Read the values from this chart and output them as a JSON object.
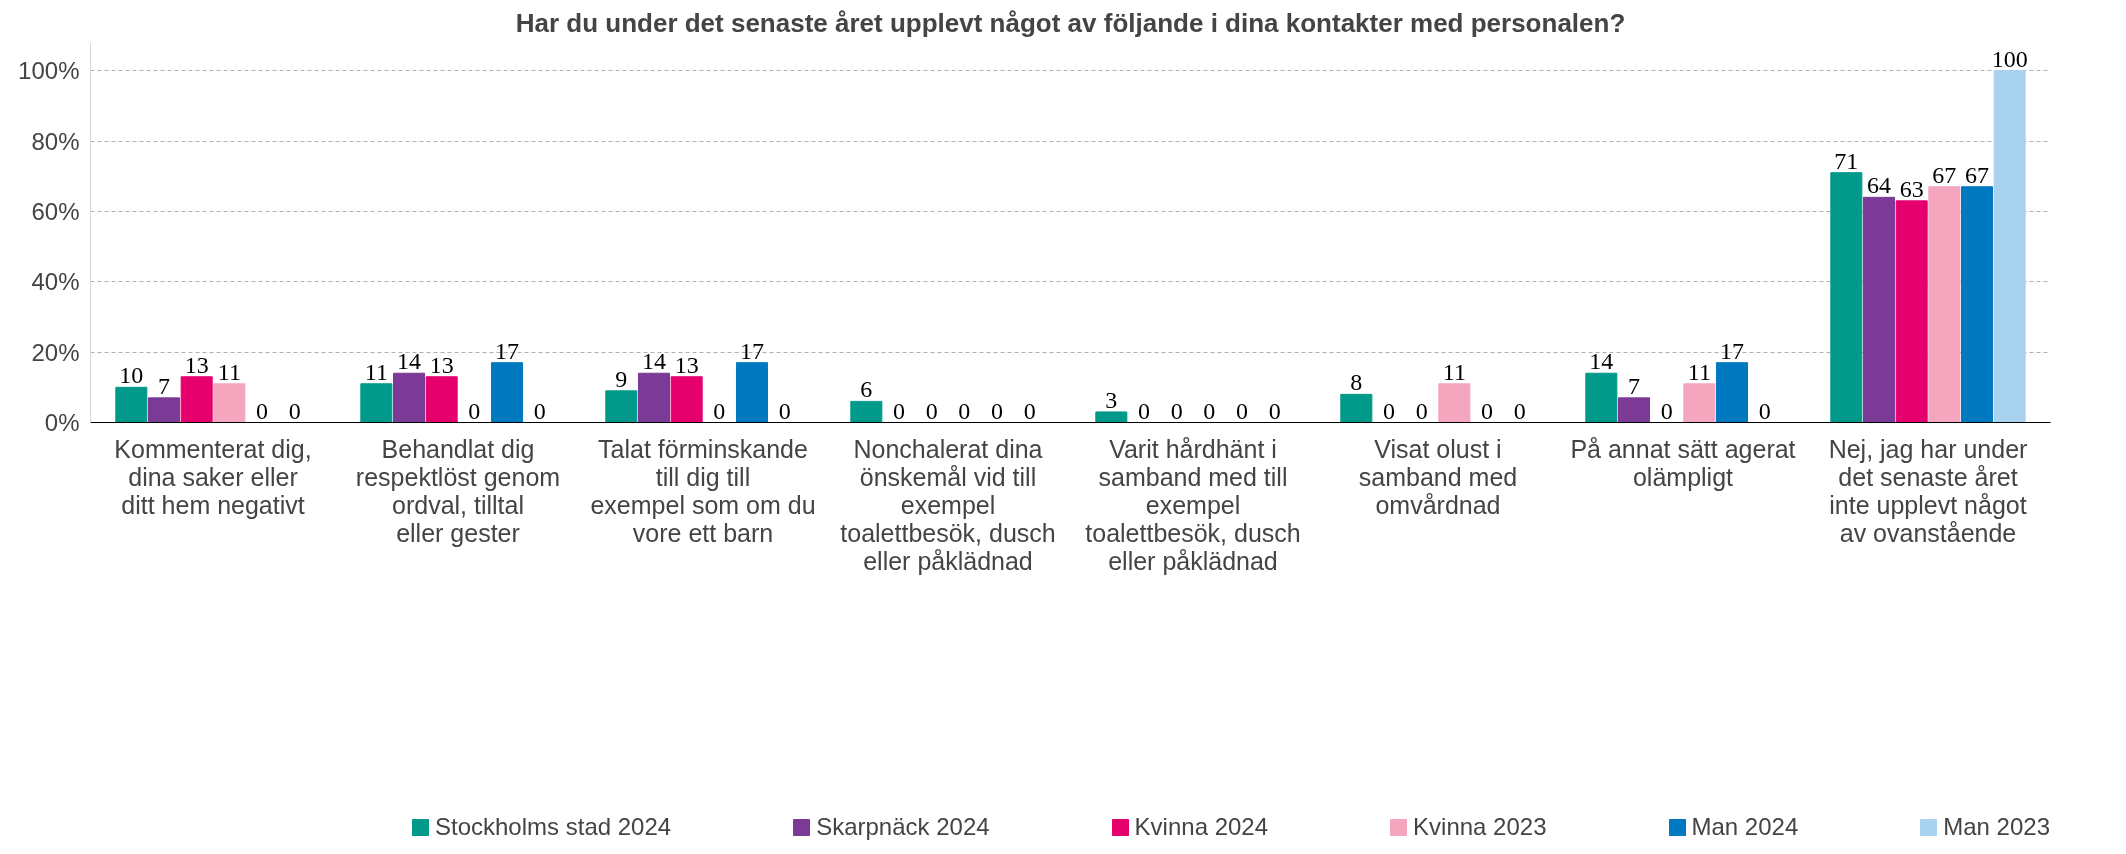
{
  "chart_data": {
    "type": "bar",
    "title": "Har du under det senaste året upplevt något av följande i dina kontakter med personalen?",
    "categories": [
      "Kommenterat dig, dina saker eller ditt hem negativt",
      "Behandlat dig respektlöst genom ordval, tilltal eller gester",
      "Talat förminskande till dig till exempel som om du vore ett barn",
      "Nonchalerat dina önskemål vid till exempel toalettbesök, dusch eller påklädnad",
      "Varit hårdhänt i samband med till exempel toalettbesök, dusch eller påklädnad",
      "Visat olust i samband med omvårdnad",
      "På annat sätt agerat olämpligt",
      "Nej, jag har under det senaste året inte upplevt något av ovanstående"
    ],
    "series": [
      {
        "name": "Stockholms stad 2024",
        "color": "#00998a",
        "values": [
          10,
          11,
          9,
          6,
          3,
          8,
          14,
          71
        ]
      },
      {
        "name": "Skarpnäck 2024",
        "color": "#7b3a96",
        "values": [
          7,
          14,
          14,
          0,
          0,
          0,
          7,
          64
        ]
      },
      {
        "name": "Kvinna 2024",
        "color": "#e5006e",
        "values": [
          13,
          13,
          13,
          0,
          0,
          0,
          0,
          63
        ]
      },
      {
        "name": "Kvinna 2023",
        "color": "#f4a6bf",
        "values": [
          11,
          0,
          0,
          0,
          0,
          11,
          11,
          67
        ]
      },
      {
        "name": "Man 2024",
        "color": "#0079c1",
        "values": [
          0,
          17,
          17,
          0,
          0,
          0,
          17,
          67
        ]
      },
      {
        "name": "Man 2023",
        "color": "#a9d1f0",
        "values": [
          0,
          0,
          0,
          0,
          0,
          0,
          0,
          100
        ]
      }
    ],
    "ylim": [
      0,
      108
    ],
    "yticks": [
      {
        "value": 0,
        "label": "0%"
      },
      {
        "value": 20,
        "label": "20%"
      },
      {
        "value": 40,
        "label": "40%"
      },
      {
        "value": 60,
        "label": "60%"
      },
      {
        "value": 80,
        "label": "80%"
      },
      {
        "value": 100,
        "label": "100%"
      }
    ],
    "grid": "y",
    "legend": "bottom",
    "data_labels": true
  }
}
